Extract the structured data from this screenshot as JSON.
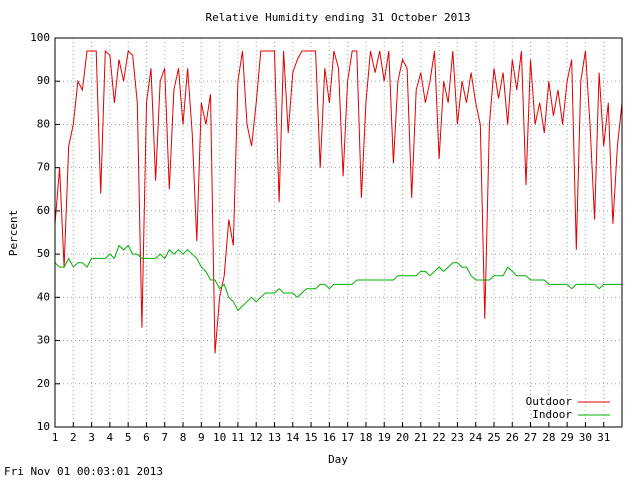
{
  "chart_data": {
    "type": "line",
    "title": "Relative Humidity ending 31 October 2013",
    "x_label": "Day",
    "y_label": "Percent",
    "footer": "Fri Nov 01 00:03:01 2013",
    "xlim": [
      1,
      32
    ],
    "ylim": [
      10,
      100
    ],
    "xticks": [
      1,
      2,
      3,
      4,
      5,
      6,
      7,
      8,
      9,
      10,
      11,
      12,
      13,
      14,
      15,
      16,
      17,
      18,
      19,
      20,
      21,
      22,
      23,
      24,
      25,
      26,
      27,
      28,
      29,
      30,
      31
    ],
    "yticks": [
      10,
      20,
      30,
      40,
      50,
      60,
      70,
      80,
      90,
      100
    ],
    "grid": true,
    "legend": "lower right",
    "x": [
      1,
      1.25,
      1.5,
      1.75,
      2,
      2.25,
      2.5,
      2.75,
      3,
      3.25,
      3.5,
      3.75,
      4,
      4.25,
      4.5,
      4.75,
      5,
      5.25,
      5.5,
      5.75,
      6,
      6.25,
      6.5,
      6.75,
      7,
      7.25,
      7.5,
      7.75,
      8,
      8.25,
      8.5,
      8.75,
      9,
      9.25,
      9.5,
      9.75,
      10,
      10.25,
      10.5,
      10.75,
      11,
      11.25,
      11.5,
      11.75,
      12,
      12.25,
      12.5,
      12.75,
      13,
      13.25,
      13.5,
      13.75,
      14,
      14.25,
      14.5,
      14.75,
      15,
      15.25,
      15.5,
      15.75,
      16,
      16.25,
      16.5,
      16.75,
      17,
      17.25,
      17.5,
      17.75,
      18,
      18.25,
      18.5,
      18.75,
      19,
      19.25,
      19.5,
      19.75,
      20,
      20.25,
      20.5,
      20.75,
      21,
      21.25,
      21.5,
      21.75,
      22,
      22.25,
      22.5,
      22.75,
      23,
      23.25,
      23.5,
      23.75,
      24,
      24.25,
      24.5,
      24.75,
      25,
      25.25,
      25.5,
      25.75,
      26,
      26.25,
      26.5,
      26.75,
      27,
      27.25,
      27.5,
      27.75,
      28,
      28.25,
      28.5,
      28.75,
      29,
      29.25,
      29.5,
      29.75,
      30,
      30.25,
      30.5,
      30.75,
      31,
      31.25,
      31.5,
      31.75,
      32
    ],
    "series": [
      {
        "name": "Outdoor",
        "color": "#e00000",
        "values": [
          57,
          70,
          47,
          75,
          80,
          90,
          88,
          97,
          97,
          97,
          64,
          97,
          96,
          85,
          95,
          90,
          97,
          96,
          85,
          33,
          85,
          93,
          67,
          90,
          93,
          65,
          88,
          93,
          80,
          93,
          78,
          53,
          85,
          80,
          87,
          27,
          40,
          45,
          58,
          52,
          90,
          97,
          80,
          75,
          85,
          97,
          97,
          97,
          97,
          62,
          97,
          78,
          92,
          95,
          97,
          97,
          97,
          97,
          70,
          93,
          85,
          97,
          93,
          68,
          90,
          97,
          97,
          63,
          85,
          97,
          92,
          97,
          90,
          97,
          71,
          90,
          95,
          93,
          63,
          88,
          92,
          85,
          90,
          97,
          72,
          90,
          85,
          97,
          80,
          90,
          85,
          92,
          85,
          80,
          35,
          80,
          93,
          86,
          92,
          80,
          95,
          88,
          97,
          66,
          95,
          80,
          85,
          78,
          90,
          82,
          88,
          80,
          90,
          95,
          51,
          90,
          97,
          80,
          58,
          92,
          75,
          85,
          57,
          75,
          85
        ]
      },
      {
        "name": "Indoor",
        "color": "#00b000",
        "values": [
          48,
          47,
          47,
          49,
          47,
          48,
          48,
          47,
          49,
          49,
          49,
          49,
          50,
          49,
          52,
          51,
          52,
          50,
          50,
          49,
          49,
          49,
          49,
          50,
          49,
          51,
          50,
          51,
          50,
          51,
          50,
          49,
          47,
          46,
          44,
          44,
          42,
          43,
          40,
          39,
          37,
          38,
          39,
          40,
          39,
          40,
          41,
          41,
          41,
          42,
          41,
          41,
          41,
          40,
          41,
          42,
          42,
          42,
          43,
          43,
          42,
          43,
          43,
          43,
          43,
          43,
          44,
          44,
          44,
          44,
          44,
          44,
          44,
          44,
          44,
          45,
          45,
          45,
          45,
          45,
          46,
          46,
          45,
          46,
          47,
          46,
          47,
          48,
          48,
          47,
          47,
          45,
          44,
          44,
          44,
          44,
          45,
          45,
          45,
          47,
          46,
          45,
          45,
          45,
          44,
          44,
          44,
          44,
          43,
          43,
          43,
          43,
          43,
          42,
          43,
          43,
          43,
          43,
          43,
          42,
          43,
          43,
          43,
          43,
          43
        ]
      }
    ]
  }
}
